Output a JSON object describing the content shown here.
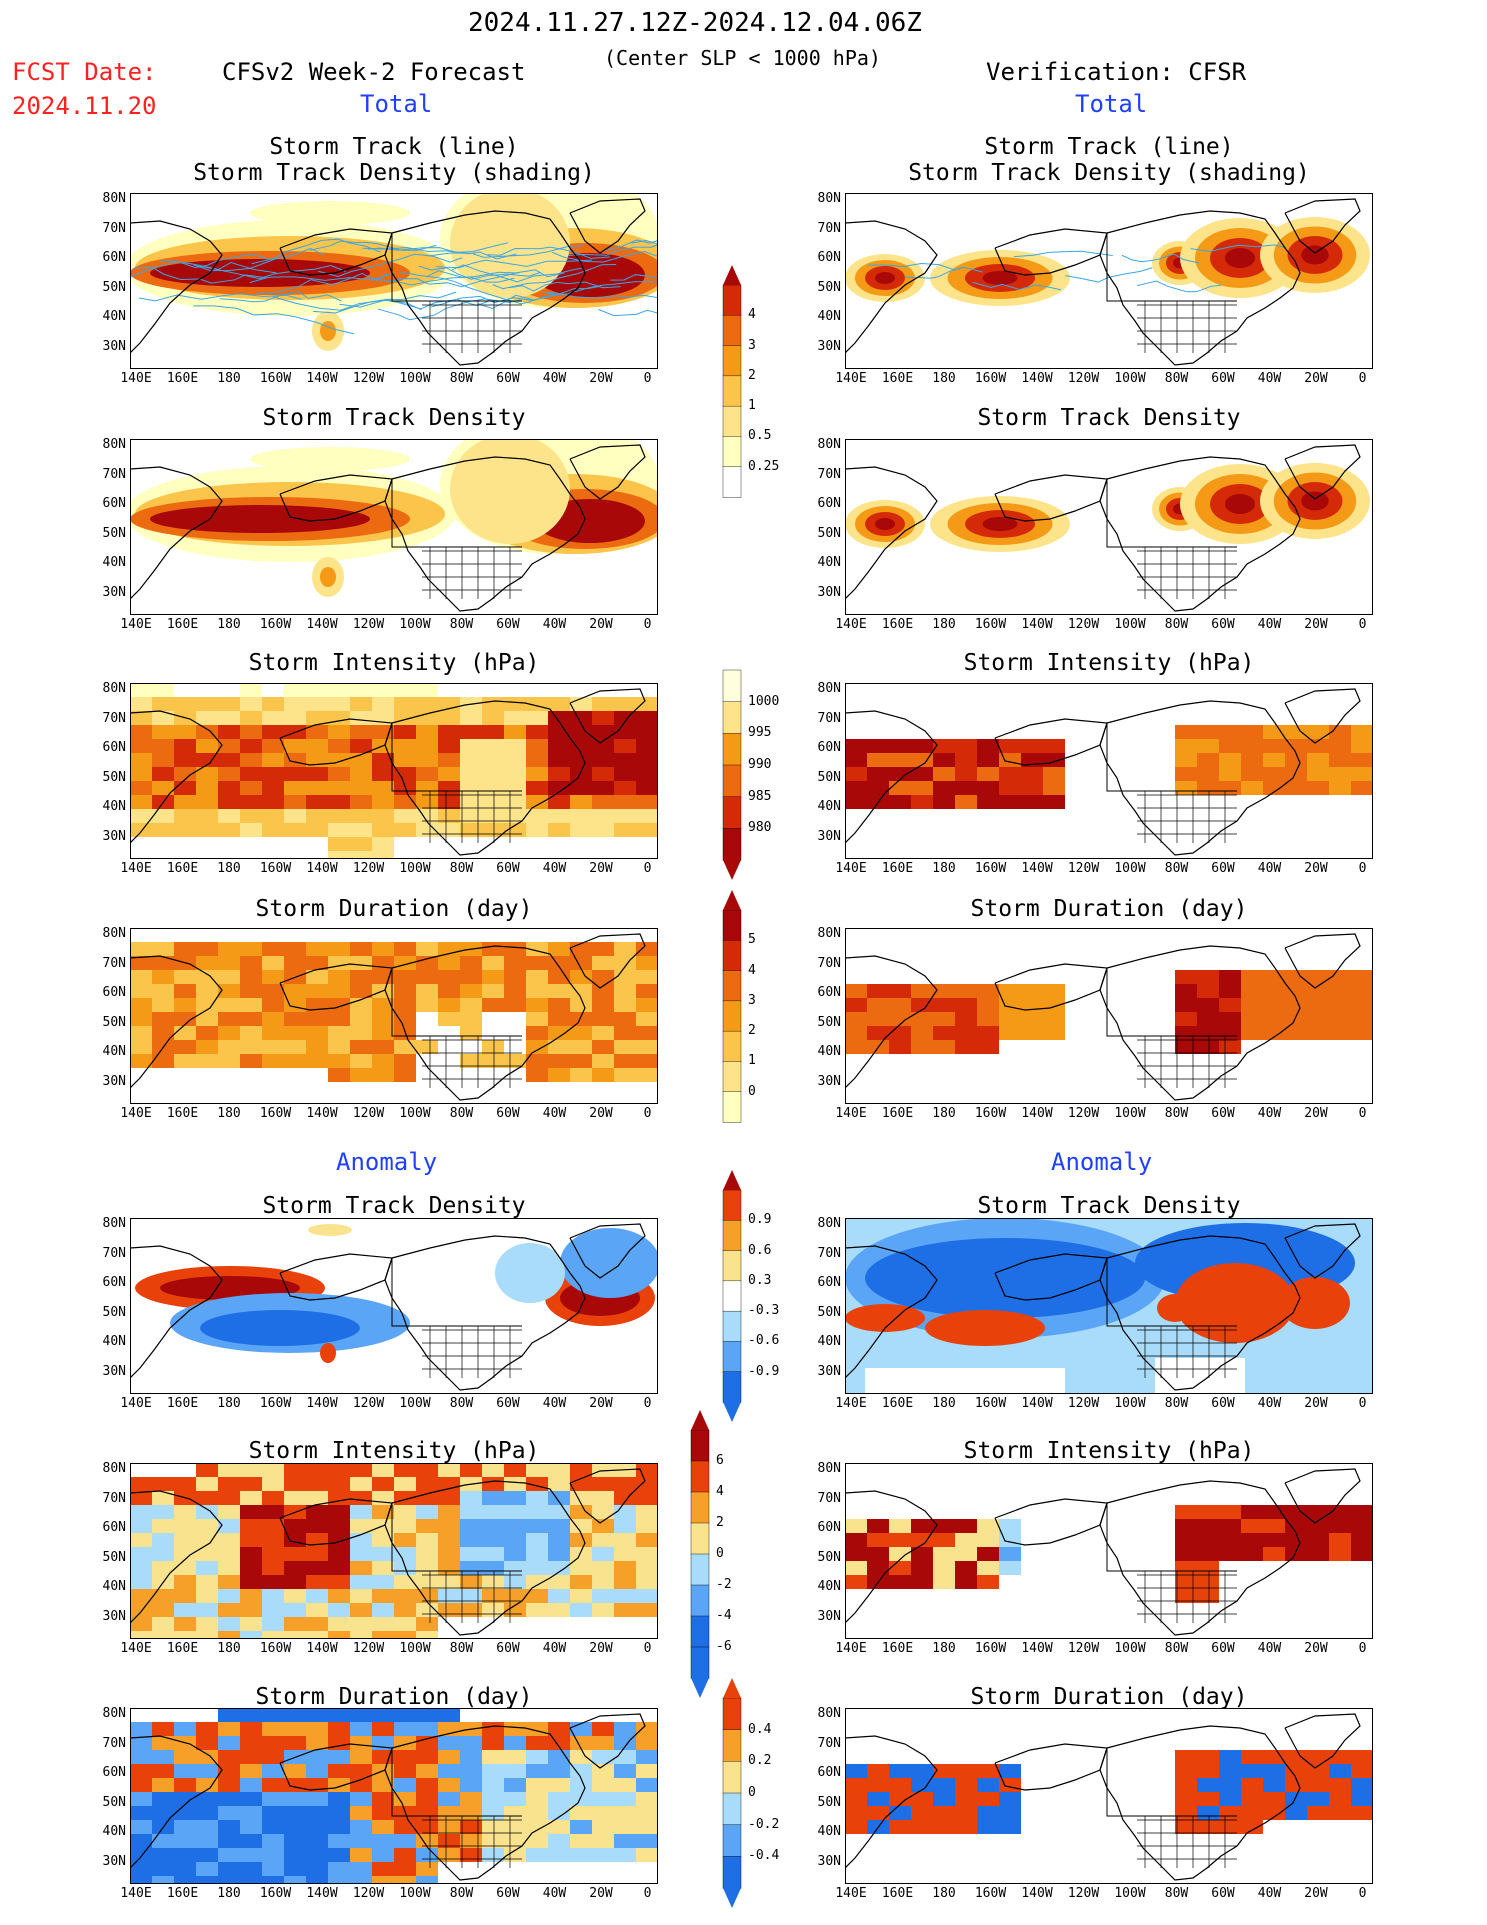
{
  "header": {
    "date_range": "2024.11.27.12Z-2024.12.04.06Z",
    "subtitle": "(Center SLP < 1000 hPa)",
    "fcst_label": "FCST Date:",
    "fcst_date": "2024.11.20",
    "left_model": "CFSv2 Week-2 Forecast",
    "right_model": "Verification: CFSR",
    "total_left": "Total",
    "total_right": "Total",
    "anomaly_left": "Anomaly",
    "anomaly_right": "Anomaly"
  },
  "panel_titles": {
    "track_1": "Storm Track (line)",
    "track_2": "Storm Track Density (shading)",
    "density": "Storm Track Density",
    "intensity": "Storm Intensity (hPa)",
    "duration": "Storm Duration (day)"
  },
  "axes": {
    "lat_labels": [
      "80N",
      "70N",
      "60N",
      "50N",
      "40N",
      "30N"
    ],
    "lon_labels": [
      "140E",
      "160E",
      "180",
      "160W",
      "140W",
      "120W",
      "100W",
      "80W",
      "60W",
      "40W",
      "20W",
      "0"
    ]
  },
  "colorbars": {
    "density_total": [
      "4",
      "3",
      "2",
      "1",
      "0.5",
      "0.25"
    ],
    "intensity_total": [
      "1000",
      "995",
      "990",
      "985",
      "980"
    ],
    "duration_total": [
      "5",
      "4",
      "3",
      "2",
      "1",
      "0"
    ],
    "density_anom": [
      "0.9",
      "0.6",
      "0.3",
      "-0.3",
      "-0.6",
      "-0.9"
    ],
    "intensity_anom": [
      "6",
      "4",
      "2",
      "0",
      "-2",
      "-4",
      "-6"
    ],
    "duration_anom": [
      "0.4",
      "0.2",
      "0",
      "-0.2",
      "-0.4"
    ]
  },
  "palettes": {
    "warm": [
      "#ffffc0",
      "#fde48a",
      "#fbc44a",
      "#f59a16",
      "#ec6a10",
      "#d42a08",
      "#a80808"
    ],
    "diverging": [
      "#1e6ee6",
      "#5aa5f5",
      "#a8dcfa",
      "#ffffff",
      "#fae38e",
      "#f6a02a",
      "#e8420a",
      "#a80808"
    ],
    "track_line": "#3ca6e6"
  }
}
